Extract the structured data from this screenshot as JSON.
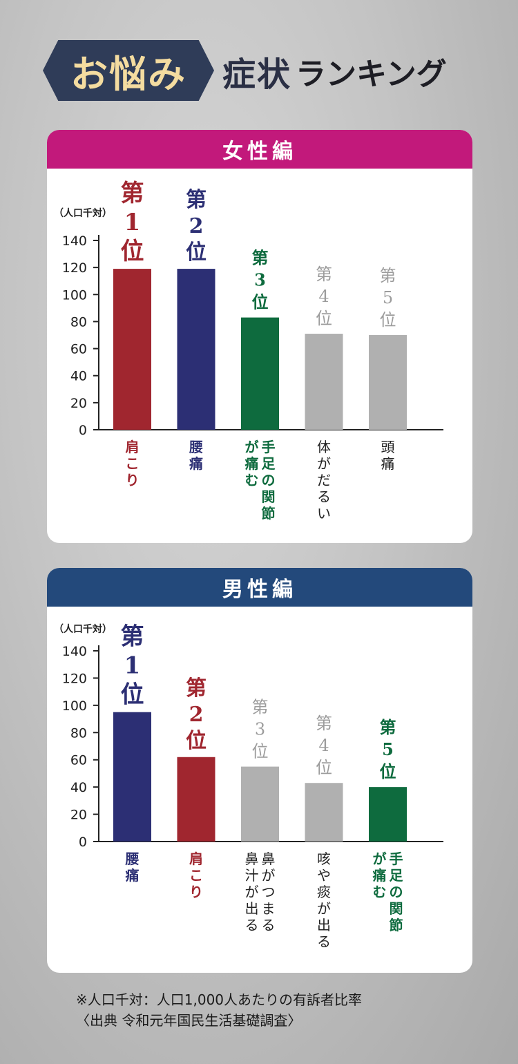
{
  "header": {
    "banner": "お悩み",
    "title_strong": "症状",
    "title_sub": "ランキング"
  },
  "colors": {
    "women_header": "#c2197b",
    "men_header": "#23497b",
    "rank_red": "#a0262f",
    "rank_navy": "#2c2f74",
    "rank_green": "#0e6b3e",
    "rank_gray": "#b0b0b0",
    "rank_gray_text": "#9c9c9c"
  },
  "chart_data": [
    {
      "type": "bar",
      "title": "女性編",
      "ylabel": "（人口千対）",
      "ylim": [
        0,
        140
      ],
      "yticks": [
        "0",
        "20",
        "40",
        "60",
        "80",
        "100",
        "120",
        "140"
      ],
      "categories": [
        "肩こり",
        "腰痛",
        "手足の関節が痛む",
        "体がだるい",
        "頭痛"
      ],
      "label_columns": [
        [
          "肩こり"
        ],
        [
          "腰痛"
        ],
        [
          "手足の関節",
          "が痛む"
        ],
        [
          "体がだるい"
        ],
        [
          "頭痛"
        ]
      ],
      "values": [
        119,
        119,
        83,
        71,
        70
      ],
      "ranks": [
        "第1位",
        "第2位",
        "第3位",
        "第4位",
        "第5位"
      ],
      "bar_colors": [
        "rank_red",
        "rank_navy",
        "rank_green",
        "rank_gray",
        "rank_gray"
      ]
    },
    {
      "type": "bar",
      "title": "男性編",
      "ylabel": "（人口千対）",
      "ylim": [
        0,
        140
      ],
      "yticks": [
        "0",
        "20",
        "40",
        "60",
        "80",
        "100",
        "120",
        "140"
      ],
      "categories": [
        "腰痛",
        "肩こり",
        "鼻がつまる鼻汁が出る",
        "咳や痰が出る",
        "手足の関節が痛む"
      ],
      "label_columns": [
        [
          "腰痛"
        ],
        [
          "肩こり"
        ],
        [
          "鼻がつまる",
          "鼻汁が出る"
        ],
        [
          "咳や痰が出る"
        ],
        [
          "手足の関節",
          "が痛む"
        ]
      ],
      "values": [
        95,
        62,
        55,
        43,
        40
      ],
      "ranks": [
        "第1位",
        "第2位",
        "第3位",
        "第4位",
        "第5位"
      ],
      "bar_colors": [
        "rank_navy",
        "rank_red",
        "rank_gray",
        "rank_gray",
        "rank_green"
      ]
    }
  ],
  "footnote": {
    "line1": "※人口千対：人口1,000人あたりの有訴者比率",
    "line2": "〈出典 令和元年国民生活基礎調査〉"
  }
}
